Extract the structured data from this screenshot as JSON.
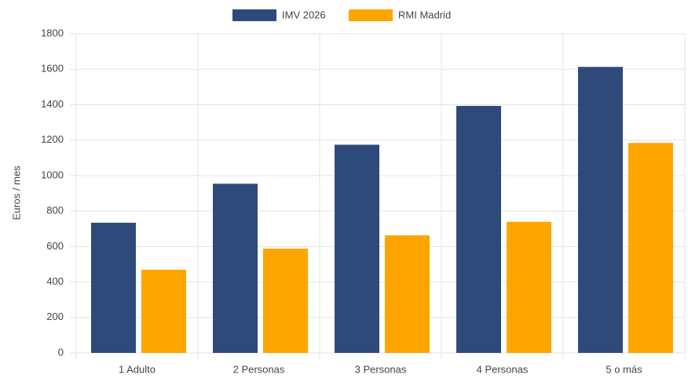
{
  "chart_data": {
    "type": "bar",
    "categories": [
      "1 Adulto",
      "2 Personas",
      "3 Personas",
      "4 Personas",
      "5 o más"
    ],
    "series": [
      {
        "name": "IMV 2026",
        "color": "#2e4a7a",
        "values": [
          734,
          954,
          1174,
          1393,
          1613
        ]
      },
      {
        "name": "RMI Madrid",
        "color": "#ffa500",
        "values": [
          469,
          588,
          663,
          739,
          1184
        ]
      }
    ],
    "ylabel": "Euros / mes",
    "ylim": [
      0,
      1800
    ],
    "yticks": [
      0,
      200,
      400,
      600,
      800,
      1000,
      1200,
      1400,
      1600,
      1800
    ],
    "grid": true,
    "legend": "top"
  }
}
